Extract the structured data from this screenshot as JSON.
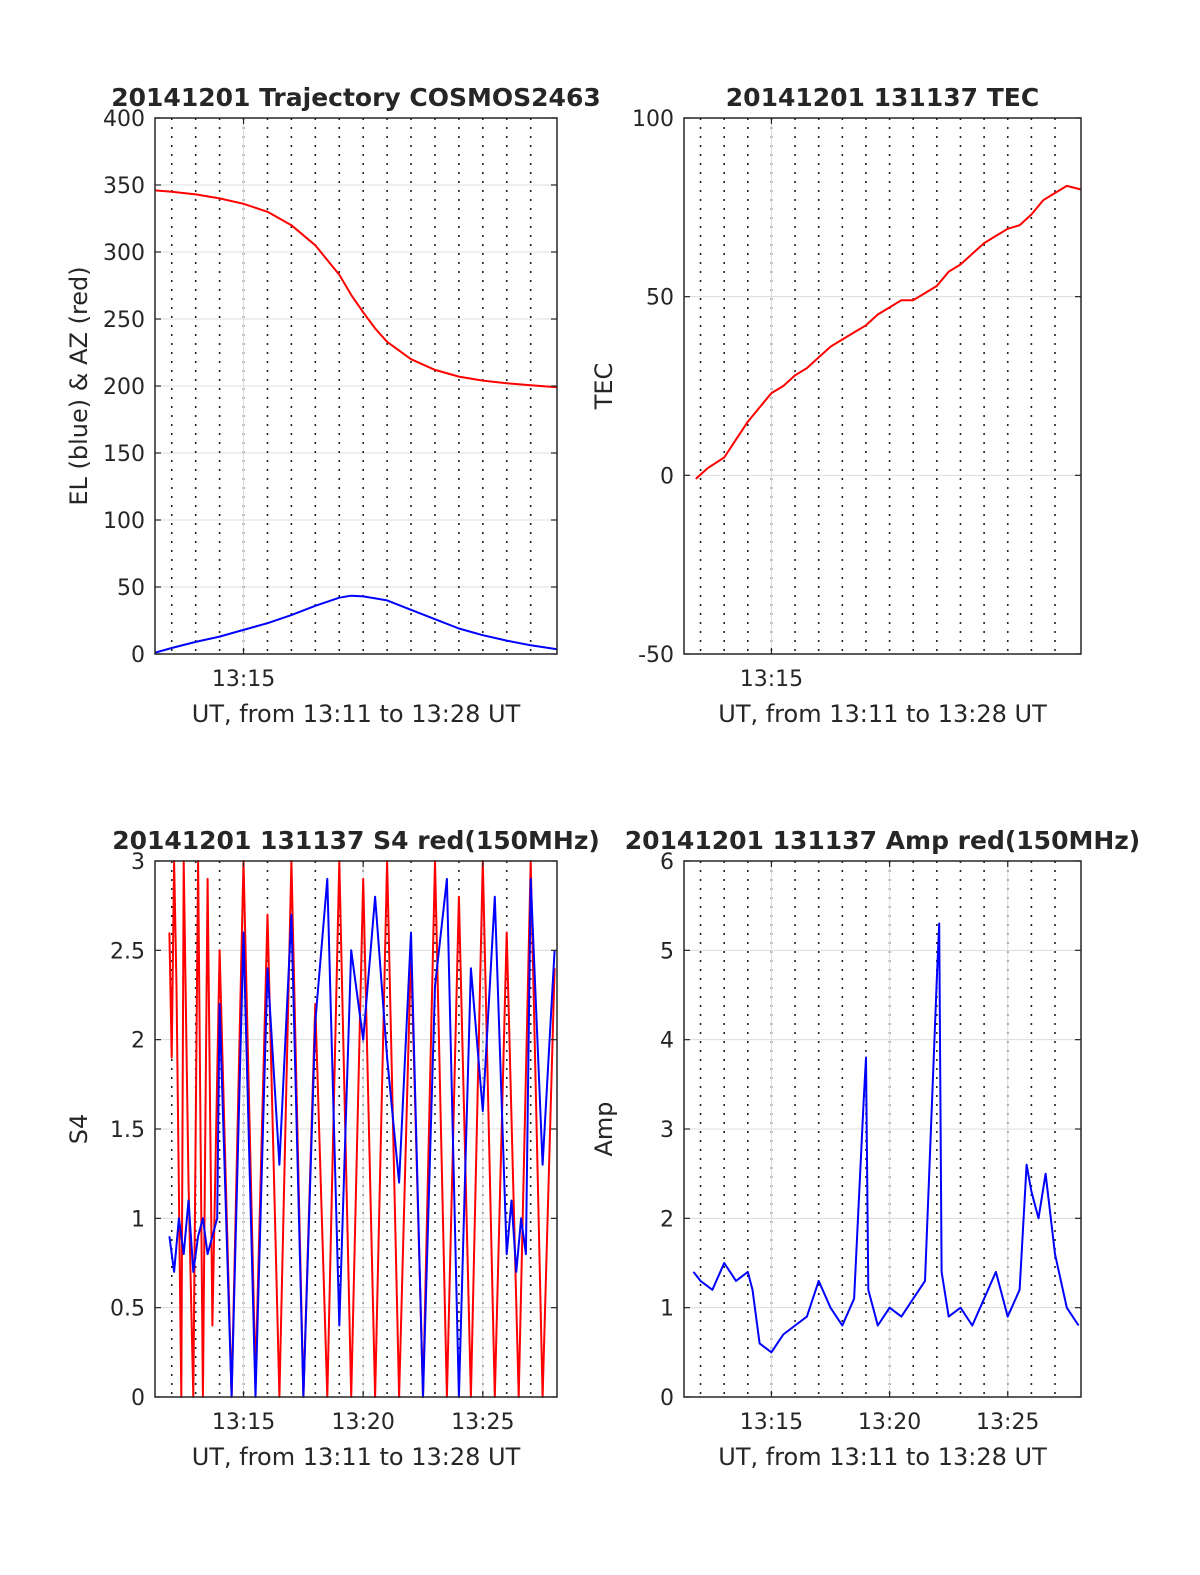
{
  "figure": {
    "background": "#ffffff",
    "axis_color": "#262626",
    "grid_color": "#dcdcdc"
  },
  "chart_data": [
    {
      "type": "line",
      "title": "20141201 Trajectory COSMOS2463",
      "xlabel": "UT, from 13:11 to 13:28 UT",
      "ylabel": "EL (blue) & AZ (red)",
      "x_unit": "minutes of UT hour 13",
      "xlim": [
        11.3,
        28.1
      ],
      "ylim": [
        0,
        400
      ],
      "yticks": [
        0,
        50,
        100,
        150,
        200,
        250,
        300,
        350,
        400
      ],
      "xticks": [
        {
          "x": 15,
          "label": "13:15"
        }
      ],
      "vertical_dotted_lines_x": [
        12,
        13,
        14,
        15,
        16,
        17,
        18,
        19,
        20,
        21,
        22,
        23,
        24,
        25,
        26,
        27
      ],
      "grid": true,
      "series": [
        {
          "color": "#ff0000",
          "x": [
            11.3,
            12,
            13,
            14,
            15,
            16,
            17,
            18,
            19,
            19.5,
            20,
            20.5,
            21,
            22,
            23,
            24,
            25,
            26,
            27,
            28.1
          ],
          "y": [
            346,
            345,
            343,
            340,
            336,
            330,
            320,
            305,
            283,
            268,
            255,
            243,
            233,
            220,
            212,
            207,
            204,
            202,
            200.5,
            199
          ]
        },
        {
          "color": "#0000ff",
          "x": [
            11.3,
            12,
            13,
            14,
            15,
            16,
            17,
            18,
            19,
            19.5,
            20,
            21,
            22,
            23,
            24,
            25,
            26,
            27,
            28.1
          ],
          "y": [
            1,
            4.5,
            9,
            13,
            18,
            23,
            29,
            36,
            42,
            43.5,
            43,
            40,
            33,
            26,
            19,
            14,
            10,
            6.5,
            3.5
          ]
        }
      ]
    },
    {
      "type": "line",
      "title": "20141201 131137 TEC",
      "xlabel": "UT, from 13:11 to 13:28 UT",
      "ylabel": "TEC",
      "x_unit": "minutes of UT hour 13",
      "xlim": [
        11.3,
        28.1
      ],
      "ylim": [
        -50,
        100
      ],
      "yticks": [
        -50,
        0,
        50,
        100
      ],
      "xticks": [
        {
          "x": 15,
          "label": "13:15"
        }
      ],
      "vertical_dotted_lines_x": [
        12,
        13,
        14,
        15,
        16,
        17,
        18,
        19,
        20,
        21,
        22,
        23,
        24,
        25,
        26,
        27
      ],
      "grid": true,
      "series": [
        {
          "color": "#ff0000",
          "x": [
            11.8,
            12.3,
            13,
            13.5,
            14,
            14.5,
            15,
            15.5,
            16,
            16.5,
            17,
            17.5,
            18,
            18.5,
            19,
            19.5,
            20,
            20.5,
            21,
            21.5,
            22,
            22.5,
            23,
            23.5,
            24,
            24.5,
            25,
            25.5,
            26,
            26.5,
            27,
            27.5,
            28.1
          ],
          "y": [
            -1,
            2,
            5,
            10,
            15,
            19,
            23,
            25,
            28,
            30,
            33,
            36,
            38,
            40,
            42,
            45,
            47,
            49,
            49,
            51,
            53,
            57,
            59,
            62,
            65,
            67,
            69,
            70,
            73,
            77,
            79,
            81,
            80
          ]
        }
      ]
    },
    {
      "type": "line",
      "title": "20141201 131137 S4 red(150MHz)",
      "xlabel": "UT, from 13:11 to 13:28 UT",
      "ylabel": "S4",
      "x_unit": "minutes of UT hour 13",
      "xlim": [
        11.3,
        28.1
      ],
      "ylim": [
        0,
        3
      ],
      "yticks": [
        0,
        0.5,
        1,
        1.5,
        2,
        2.5,
        3
      ],
      "xticks": [
        {
          "x": 15,
          "label": "13:15"
        },
        {
          "x": 20,
          "label": "13:20"
        },
        {
          "x": 25,
          "label": "13:25"
        }
      ],
      "vertical_dotted_lines_x": [
        12,
        13,
        14,
        15,
        16,
        17,
        18,
        19,
        20,
        21,
        22,
        23,
        24,
        25,
        26,
        27
      ],
      "grid": true,
      "series": [
        {
          "color": "#ff0000",
          "x": [
            11.9,
            12.0,
            12.1,
            12.2,
            12.4,
            12.5,
            12.7,
            12.9,
            13.1,
            13.3,
            13.5,
            13.7,
            14.0,
            14.5,
            15.0,
            15.5,
            16.0,
            16.5,
            17.0,
            17.5,
            18.0,
            18.5,
            19.0,
            19.5,
            20.0,
            20.5,
            21.0,
            21.5,
            22.0,
            22.5,
            23.0,
            23.5,
            24.0,
            24.5,
            25.0,
            25.5,
            26.0,
            26.5,
            27.0,
            27.5,
            28.0
          ],
          "y": [
            2.6,
            1.9,
            3.0,
            2.3,
            0.0,
            3.0,
            1.2,
            0.0,
            3.0,
            0.0,
            2.9,
            0.4,
            2.5,
            0.0,
            3.0,
            0.1,
            2.7,
            0.0,
            3.0,
            0.0,
            2.2,
            0.0,
            3.0,
            0.0,
            2.9,
            0.0,
            3.0,
            0.0,
            2.5,
            0.0,
            3.0,
            0.0,
            2.8,
            0.0,
            3.0,
            0.0,
            2.6,
            0.0,
            3.0,
            0.0,
            2.4
          ]
        },
        {
          "color": "#0000ff",
          "x": [
            11.9,
            12.1,
            12.3,
            12.5,
            12.7,
            12.9,
            13.1,
            13.3,
            13.5,
            13.7,
            13.9,
            14.0,
            14.5,
            15.0,
            15.5,
            16.0,
            16.5,
            17.0,
            17.5,
            18.0,
            18.5,
            19.0,
            19.5,
            20.0,
            20.5,
            21.0,
            21.5,
            22.0,
            22.5,
            23.0,
            23.5,
            24.0,
            24.5,
            25.0,
            25.5,
            26.0,
            26.2,
            26.4,
            26.6,
            26.8,
            27.0,
            27.5,
            28.0
          ],
          "y": [
            0.9,
            0.7,
            1.0,
            0.8,
            1.1,
            0.7,
            0.9,
            1.0,
            0.8,
            0.9,
            1.0,
            2.2,
            0.0,
            2.6,
            0.0,
            2.4,
            1.3,
            2.7,
            0.0,
            2.1,
            2.9,
            0.4,
            2.5,
            2.0,
            2.8,
            1.9,
            1.2,
            2.6,
            0.0,
            2.3,
            2.9,
            0.0,
            2.4,
            1.6,
            2.8,
            0.8,
            1.1,
            0.7,
            1.0,
            0.8,
            2.9,
            1.3,
            2.5
          ]
        }
      ]
    },
    {
      "type": "line",
      "title": "20141201 131137 Amp red(150MHz)",
      "xlabel": "UT, from 13:11 to 13:28 UT",
      "ylabel": "Amp",
      "x_unit": "minutes of UT hour 13",
      "xlim": [
        11.3,
        28.1
      ],
      "ylim": [
        0,
        6
      ],
      "yticks": [
        0,
        1,
        2,
        3,
        4,
        5,
        6
      ],
      "xticks": [
        {
          "x": 15,
          "label": "13:15"
        },
        {
          "x": 20,
          "label": "13:20"
        },
        {
          "x": 25,
          "label": "13:25"
        }
      ],
      "vertical_dotted_lines_x": [
        12,
        13,
        14,
        15,
        16,
        17,
        18,
        19,
        20,
        21,
        22,
        23,
        24,
        25,
        26,
        27
      ],
      "grid": true,
      "series": [
        {
          "color": "#0000ff",
          "x": [
            11.7,
            12.0,
            12.5,
            13.0,
            13.5,
            14.0,
            14.2,
            14.5,
            15.0,
            15.5,
            16.0,
            16.5,
            17.0,
            17.5,
            18.0,
            18.5,
            18.9,
            19.0,
            19.1,
            19.5,
            20.0,
            20.5,
            21.0,
            21.5,
            22.0,
            22.1,
            22.2,
            22.5,
            23.0,
            23.5,
            24.0,
            24.5,
            25.0,
            25.5,
            25.8,
            26.0,
            26.3,
            26.6,
            27.0,
            27.5,
            28.0
          ],
          "y": [
            1.4,
            1.3,
            1.2,
            1.5,
            1.3,
            1.4,
            1.2,
            0.6,
            0.5,
            0.7,
            0.8,
            0.9,
            1.3,
            1.0,
            0.8,
            1.1,
            3.3,
            3.8,
            1.2,
            0.8,
            1.0,
            0.9,
            1.1,
            1.3,
            4.7,
            5.3,
            1.4,
            0.9,
            1.0,
            0.8,
            1.1,
            1.4,
            0.9,
            1.2,
            2.6,
            2.3,
            2.0,
            2.5,
            1.6,
            1.0,
            0.8
          ]
        }
      ]
    }
  ]
}
